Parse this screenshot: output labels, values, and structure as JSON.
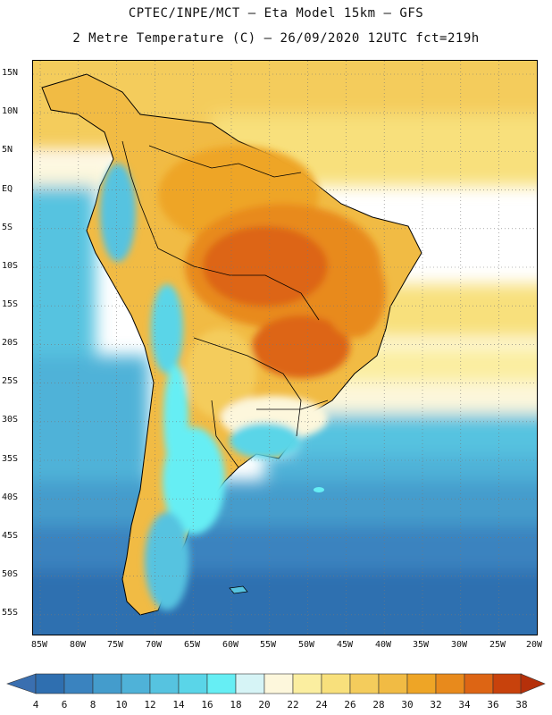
{
  "title": {
    "line1": "CPTEC/INPE/MCT –  Eta Model 15km – GFS",
    "line2": "2 Metre Temperature (C) – 26/09/2020 12UTC fct=219h"
  },
  "axes": {
    "lat_labels": [
      "15N",
      "10N",
      "5N",
      "EQ",
      "5S",
      "10S",
      "15S",
      "20S",
      "25S",
      "30S",
      "35S",
      "40S",
      "45S",
      "50S",
      "55S"
    ],
    "lon_labels": [
      "85W",
      "80W",
      "75W",
      "70W",
      "65W",
      "60W",
      "55W",
      "50W",
      "45W",
      "40W",
      "35W",
      "30W",
      "25W",
      "20W"
    ]
  },
  "colorbar": {
    "levels": [
      "4",
      "6",
      "8",
      "10",
      "12",
      "14",
      "16",
      "18",
      "20",
      "22",
      "24",
      "26",
      "28",
      "30",
      "32",
      "34",
      "36",
      "38"
    ],
    "colors": [
      "#2f6fb0",
      "#3a83bf",
      "#449ccc",
      "#4fb2d8",
      "#56c3e0",
      "#5ad5e8",
      "#66eef4",
      "#d6f4f6",
      "#fdf7dc",
      "#fbeea0",
      "#f8e07c",
      "#f4cc5c",
      "#f1bb44",
      "#eea526",
      "#e88a1c",
      "#dd6514",
      "#c8420c"
    ],
    "low_color": "#3a6fb0",
    "high_color": "#b5300a"
  }
}
